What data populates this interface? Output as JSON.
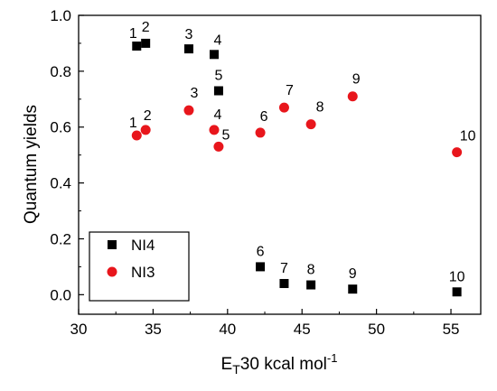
{
  "chart_data": {
    "type": "scatter",
    "title": "",
    "xlabel": {
      "main": "E",
      "sub": "T",
      "rest": "30 kcal mol",
      "sup": "-1"
    },
    "ylabel": "Quantum yields",
    "xlim": [
      30,
      57
    ],
    "ylim": [
      -0.07,
      1.0
    ],
    "xticks": [
      "30",
      "35",
      "40",
      "45",
      "50",
      "55"
    ],
    "xtick_values": [
      30,
      35,
      40,
      45,
      50,
      55
    ],
    "yticks": [
      "0.0",
      "0.2",
      "0.4",
      "0.6",
      "0.8",
      "1.0"
    ],
    "ytick_values": [
      0.0,
      0.2,
      0.4,
      0.6,
      0.8,
      1.0
    ],
    "grid": false,
    "legend": "bottom-left",
    "series": [
      {
        "name": "NI4",
        "marker": "square",
        "color": "#000000",
        "points": [
          {
            "x": 33.9,
            "y": 0.89,
            "label": "1"
          },
          {
            "x": 34.5,
            "y": 0.9,
            "label": "2"
          },
          {
            "x": 37.4,
            "y": 0.88,
            "label": "3"
          },
          {
            "x": 39.1,
            "y": 0.86,
            "label": "4"
          },
          {
            "x": 39.4,
            "y": 0.73,
            "label": "5"
          },
          {
            "x": 42.2,
            "y": 0.1,
            "label": "6"
          },
          {
            "x": 43.8,
            "y": 0.04,
            "label": "7"
          },
          {
            "x": 45.6,
            "y": 0.035,
            "label": "8"
          },
          {
            "x": 48.4,
            "y": 0.02,
            "label": "9"
          },
          {
            "x": 55.4,
            "y": 0.01,
            "label": "10"
          }
        ]
      },
      {
        "name": "NI3",
        "marker": "circle",
        "color": "#e8161c",
        "points": [
          {
            "x": 33.9,
            "y": 0.57,
            "label": "1"
          },
          {
            "x": 34.5,
            "y": 0.59,
            "label": "2"
          },
          {
            "x": 37.4,
            "y": 0.66,
            "label": "3"
          },
          {
            "x": 39.1,
            "y": 0.59,
            "label": "4"
          },
          {
            "x": 39.4,
            "y": 0.53,
            "label": "5"
          },
          {
            "x": 42.2,
            "y": 0.58,
            "label": "6"
          },
          {
            "x": 43.8,
            "y": 0.67,
            "label": "7"
          },
          {
            "x": 45.6,
            "y": 0.61,
            "label": "8"
          },
          {
            "x": 48.4,
            "y": 0.71,
            "label": "9"
          },
          {
            "x": 55.4,
            "y": 0.51,
            "label": "10"
          }
        ]
      }
    ]
  }
}
